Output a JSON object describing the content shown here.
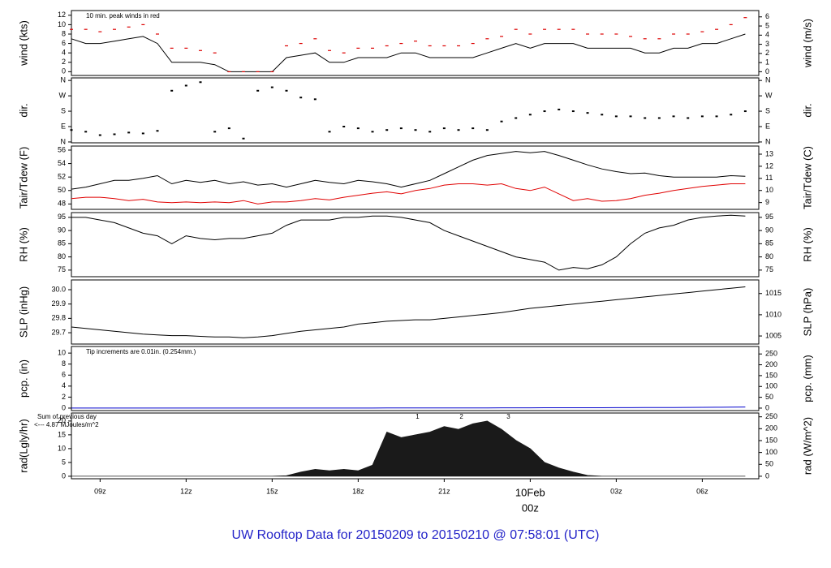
{
  "title": "UW Rooftop Data for 20150209  to  20150210 @ 07:58:01  (UTC)",
  "chart_data": [
    {
      "type": "line",
      "ylabel": "wind (kts)",
      "y2label": "wind (m/s)",
      "note": "10 min. peak winds in red",
      "note_color": "#cc0000",
      "xlim": [
        8,
        31.97
      ],
      "ylim": [
        -0.8,
        13
      ],
      "yticks": [
        0,
        2,
        4,
        6,
        8,
        10,
        12
      ],
      "y2lim": [
        -0.41,
        6.69
      ],
      "y2ticks": [
        0,
        1,
        2,
        3,
        4,
        5,
        6
      ],
      "x": [
        8,
        8.5,
        9,
        9.5,
        10,
        10.5,
        11,
        11.5,
        12,
        12.5,
        13,
        13.5,
        14,
        14.5,
        15,
        15.5,
        16,
        16.5,
        17,
        17.5,
        18,
        18.5,
        19,
        19.5,
        20,
        20.5,
        21,
        21.5,
        22,
        22.5,
        23,
        23.5,
        24,
        24.5,
        25,
        25.5,
        26,
        26.5,
        27,
        27.5,
        28,
        28.5,
        29,
        29.5,
        30,
        30.5,
        31,
        31.5
      ],
      "series": [
        {
          "color": "#000000",
          "values": [
            7,
            6,
            6,
            6.5,
            7,
            7.5,
            6,
            2,
            2,
            2,
            1.5,
            0,
            0,
            0,
            0,
            3,
            3.5,
            4,
            2,
            2,
            3,
            3,
            3,
            4,
            4,
            3,
            3,
            3,
            3,
            4,
            5,
            6,
            5,
            6,
            6,
            6,
            5,
            5,
            5,
            5,
            4,
            4,
            5,
            5,
            6,
            6,
            7,
            8
          ]
        },
        {
          "color": "#dd0000",
          "marker": "dash",
          "values": [
            9,
            9,
            8.5,
            9,
            9.5,
            10,
            8,
            5,
            5,
            4.5,
            4,
            0,
            0,
            0,
            0,
            5.5,
            6,
            7,
            4.5,
            4,
            5,
            5,
            5.5,
            6,
            6.5,
            5.5,
            5.5,
            5.5,
            6,
            7,
            7.5,
            9,
            8,
            9,
            9,
            9,
            8,
            8,
            8,
            7.5,
            7,
            7,
            8,
            8,
            8.5,
            9,
            10,
            11.5
          ]
        }
      ]
    },
    {
      "type": "scatter",
      "ylabel": "dir.",
      "y2label": "dir.",
      "xlim": [
        8,
        31.97
      ],
      "ylim": [
        -5,
        375
      ],
      "yticks": [
        {
          "value": 0,
          "label": "N"
        },
        {
          "value": 90,
          "label": "E"
        },
        {
          "value": 180,
          "label": "S"
        },
        {
          "value": 270,
          "label": "W"
        },
        {
          "value": 360,
          "label": "N"
        }
      ],
      "y2lim": [
        -5,
        375
      ],
      "y2ticks": [
        {
          "value": 0,
          "label": "N"
        },
        {
          "value": 90,
          "label": "E"
        },
        {
          "value": 180,
          "label": "S"
        },
        {
          "value": 270,
          "label": "W"
        },
        {
          "value": 360,
          "label": "N"
        }
      ],
      "x": [
        8,
        8.5,
        9,
        9.5,
        10,
        10.5,
        11,
        11.5,
        12,
        12.5,
        13,
        13.5,
        14,
        14.5,
        15,
        15.5,
        16,
        16.5,
        17,
        17.5,
        18,
        18.5,
        19,
        19.5,
        20,
        20.5,
        21,
        21.5,
        22,
        22.5,
        23,
        23.5,
        24,
        24.5,
        25,
        25.5,
        26,
        26.5,
        27,
        27.5,
        28,
        28.5,
        29,
        29.5,
        30,
        30.5,
        31,
        31.5
      ],
      "series": [
        {
          "color": "#000000",
          "values": [
            70,
            60,
            40,
            45,
            55,
            50,
            65,
            300,
            330,
            350,
            60,
            80,
            20,
            300,
            320,
            300,
            260,
            250,
            60,
            90,
            80,
            60,
            70,
            80,
            70,
            60,
            80,
            70,
            80,
            70,
            120,
            140,
            160,
            180,
            190,
            180,
            170,
            160,
            150,
            150,
            140,
            140,
            150,
            140,
            150,
            150,
            160,
            180
          ]
        }
      ]
    },
    {
      "type": "line",
      "ylabel": "Tair/Tdew (F)",
      "y2label": "Tair/Tdew (C)",
      "xlim": [
        8,
        31.97
      ],
      "ylim": [
        47.2,
        56.6
      ],
      "yticks": [
        48,
        50,
        52,
        54,
        56
      ],
      "y2lim": [
        8.44,
        13.67
      ],
      "y2ticks": [
        9,
        10,
        11,
        12,
        13
      ],
      "x": [
        8,
        8.5,
        9,
        9.5,
        10,
        10.5,
        11,
        11.5,
        12,
        12.5,
        13,
        13.5,
        14,
        14.5,
        15,
        15.5,
        16,
        16.5,
        17,
        17.5,
        18,
        18.5,
        19,
        19.5,
        20,
        20.5,
        21,
        21.5,
        22,
        22.5,
        23,
        23.5,
        24,
        24.5,
        25,
        25.5,
        26,
        26.5,
        27,
        27.5,
        28,
        28.5,
        29,
        29.5,
        30,
        30.5,
        31,
        31.5
      ],
      "series": [
        {
          "color": "#000000",
          "values": [
            50.2,
            50.5,
            51,
            51.5,
            51.5,
            51.8,
            52.2,
            51,
            51.5,
            51.2,
            51.5,
            51,
            51.3,
            50.8,
            51,
            50.5,
            51,
            51.5,
            51.2,
            51,
            51.5,
            51.3,
            51,
            50.5,
            51,
            51.5,
            52.5,
            53.5,
            54.5,
            55.2,
            55.5,
            55.8,
            55.6,
            55.8,
            55.2,
            54.5,
            53.8,
            53.2,
            52.8,
            52.5,
            52.6,
            52.2,
            52,
            52,
            52,
            52,
            52.2,
            52.1
          ]
        },
        {
          "color": "#e00000",
          "values": [
            48.8,
            49,
            49,
            48.8,
            48.5,
            48.7,
            48.3,
            48.2,
            48.3,
            48.2,
            48.3,
            48.2,
            48.5,
            48,
            48.3,
            48.3,
            48.5,
            48.8,
            48.6,
            49,
            49.3,
            49.6,
            49.8,
            49.5,
            50,
            50.3,
            50.8,
            51,
            51,
            50.8,
            51,
            50.3,
            50,
            50.5,
            49.5,
            48.5,
            48.8,
            48.4,
            48.5,
            48.8,
            49.3,
            49.6,
            50,
            50.3,
            50.6,
            50.8,
            51,
            51
          ]
        }
      ]
    },
    {
      "type": "line",
      "ylabel": "RH (%)",
      "y2label": "RH (%)",
      "xlim": [
        8,
        31.97
      ],
      "ylim": [
        72.5,
        96.8
      ],
      "yticks": [
        75,
        80,
        85,
        90,
        95
      ],
      "y2lim": [
        72.5,
        96.8
      ],
      "y2ticks": [
        75,
        80,
        85,
        90,
        95
      ],
      "x": [
        8,
        8.5,
        9,
        9.5,
        10,
        10.5,
        11,
        11.5,
        12,
        12.5,
        13,
        13.5,
        14,
        14.5,
        15,
        15.5,
        16,
        16.5,
        17,
        17.5,
        18,
        18.5,
        19,
        19.5,
        20,
        20.5,
        21,
        21.5,
        22,
        22.5,
        23,
        23.5,
        24,
        24.5,
        25,
        25.5,
        26,
        26.5,
        27,
        27.5,
        28,
        28.5,
        29,
        29.5,
        30,
        30.5,
        31,
        31.5
      ],
      "series": [
        {
          "color": "#000000",
          "values": [
            95,
            95,
            94,
            93,
            91,
            89,
            88,
            85,
            88,
            87,
            86.5,
            87,
            87,
            88,
            89,
            92,
            94,
            94,
            94,
            95,
            95,
            95.5,
            95.5,
            95,
            94,
            93,
            90,
            88,
            86,
            84,
            82,
            80,
            79,
            78,
            75,
            76,
            75.5,
            77,
            80,
            85,
            89,
            91,
            92,
            94,
            95,
            95.5,
            95.8,
            95.5
          ]
        }
      ]
    },
    {
      "type": "line",
      "ylabel": "SLP (inHg)",
      "y2label": "SLP (hPa)",
      "xlim": [
        8,
        31.97
      ],
      "ylim": [
        29.621,
        30.068
      ],
      "yticks": [
        29.7,
        29.8,
        29.9,
        {
          "value": 30,
          "label": "30.0"
        }
      ],
      "y2lim": [
        1003.1,
        1018.2
      ],
      "y2ticks": [
        1005,
        1010,
        1015
      ],
      "x": [
        8,
        8.5,
        9,
        9.5,
        10,
        10.5,
        11,
        11.5,
        12,
        12.5,
        13,
        13.5,
        14,
        14.5,
        15,
        15.5,
        16,
        16.5,
        17,
        17.5,
        18,
        18.5,
        19,
        19.5,
        20,
        20.5,
        21,
        21.5,
        22,
        22.5,
        23,
        23.5,
        24,
        24.5,
        25,
        25.5,
        26,
        26.5,
        27,
        27.5,
        28,
        28.5,
        29,
        29.5,
        30,
        30.5,
        31,
        31.5
      ],
      "series": [
        {
          "color": "#000000",
          "values": [
            29.74,
            29.73,
            29.72,
            29.71,
            29.7,
            29.69,
            29.685,
            29.68,
            29.68,
            29.675,
            29.67,
            29.67,
            29.665,
            29.67,
            29.68,
            29.695,
            29.71,
            29.72,
            29.73,
            29.74,
            29.76,
            29.77,
            29.78,
            29.785,
            29.79,
            29.79,
            29.8,
            29.81,
            29.82,
            29.83,
            29.84,
            29.855,
            29.87,
            29.88,
            29.89,
            29.9,
            29.91,
            29.92,
            29.93,
            29.94,
            29.95,
            29.96,
            29.97,
            29.98,
            29.99,
            30,
            30.01,
            30.02
          ]
        }
      ]
    },
    {
      "type": "line",
      "ylabel": "pcp. (in)",
      "y2label": "pcp. (mm)",
      "note": "Tip increments are 0.01in. (0.254mm.)",
      "note_color": "#000080",
      "xlim": [
        8,
        31.97
      ],
      "ylim": [
        -0.45,
        11.2
      ],
      "yticks": [
        0,
        2,
        4,
        6,
        8,
        10
      ],
      "y2lim": [
        -11.4,
        284.5
      ],
      "y2ticks": [
        0,
        50,
        100,
        150,
        200,
        250
      ],
      "x": [
        8,
        8.5,
        9,
        9.5,
        10,
        10.5,
        11,
        11.5,
        12,
        12.5,
        13,
        13.5,
        14,
        14.5,
        15,
        15.5,
        16,
        16.5,
        17,
        17.5,
        18,
        18.5,
        19,
        19.5,
        20,
        20.5,
        21,
        21.5,
        22,
        22.5,
        23,
        23.5,
        24,
        24.5,
        25,
        25.5,
        26,
        26.5,
        27,
        27.5,
        28,
        28.5,
        29,
        29.5,
        30,
        30.5,
        31,
        31.5
      ],
      "series": [
        {
          "color": "#0000cc",
          "values": [
            0,
            0,
            0,
            0,
            0,
            0,
            0,
            0,
            0,
            0,
            0,
            0,
            0,
            0,
            0,
            0,
            0,
            0,
            0,
            0,
            0.01,
            0.01,
            0.02,
            0.02,
            0.02,
            0.03,
            0.03,
            0.03,
            0.04,
            0.04,
            0.05,
            0.05,
            0.05,
            0.06,
            0.06,
            0.06,
            0.07,
            0.07,
            0.08,
            0.08,
            0.09,
            0.1,
            0.11,
            0.12,
            0.14,
            0.16,
            0.18,
            0.2
          ]
        }
      ]
    },
    {
      "type": "area",
      "ylabel": "rad(Lgly/hr)",
      "y2label": "rad (W/m^2)",
      "notes": [
        "Sum of previous day",
        "<--- 4.87 MJoules/m^2"
      ],
      "note_color": "#9900cc",
      "markers": [
        "1",
        "2",
        "3"
      ],
      "date_label": "10Feb",
      "xlim": [
        8,
        31.97
      ],
      "ylim": [
        -0.9,
        22.9
      ],
      "yticks": [
        0,
        5,
        10,
        15,
        20
      ],
      "y2lim": [
        -10.5,
        266
      ],
      "y2ticks": [
        0,
        50,
        100,
        150,
        200,
        250
      ],
      "xticks": [
        {
          "value": 9,
          "label": "09z"
        },
        {
          "value": 12,
          "label": "12z"
        },
        {
          "value": 15,
          "label": "15z"
        },
        {
          "value": 18,
          "label": "18z"
        },
        {
          "value": 21,
          "label": "21z"
        },
        {
          "value": 24,
          "label": "00z"
        },
        {
          "value": 27,
          "label": "03z"
        },
        {
          "value": 30,
          "label": "06z"
        }
      ],
      "x": [
        8,
        8.5,
        9,
        9.5,
        10,
        10.5,
        11,
        11.5,
        12,
        12.5,
        13,
        13.5,
        14,
        14.5,
        15,
        15.5,
        16,
        16.5,
        17,
        17.5,
        18,
        18.5,
        19,
        19.5,
        20,
        20.5,
        21,
        21.5,
        22,
        22.5,
        23,
        23.5,
        24,
        24.5,
        25,
        25.5,
        26,
        26.5,
        27,
        27.5,
        28,
        28.5,
        29,
        29.5,
        30,
        30.5,
        31,
        31.5
      ],
      "series": [
        {
          "color": "#1a1a1a",
          "values": [
            0,
            0,
            0,
            0,
            0,
            0,
            0,
            0,
            0,
            0,
            0,
            0,
            0,
            0,
            0,
            0.2,
            1.5,
            2.5,
            2,
            2.5,
            2,
            4,
            16,
            14,
            15,
            16,
            18,
            17,
            19,
            20,
            17,
            13,
            10,
            5,
            3,
            1.5,
            0.3,
            0,
            0,
            0,
            0,
            0,
            0,
            0,
            0,
            0,
            0,
            0
          ]
        }
      ]
    }
  ]
}
